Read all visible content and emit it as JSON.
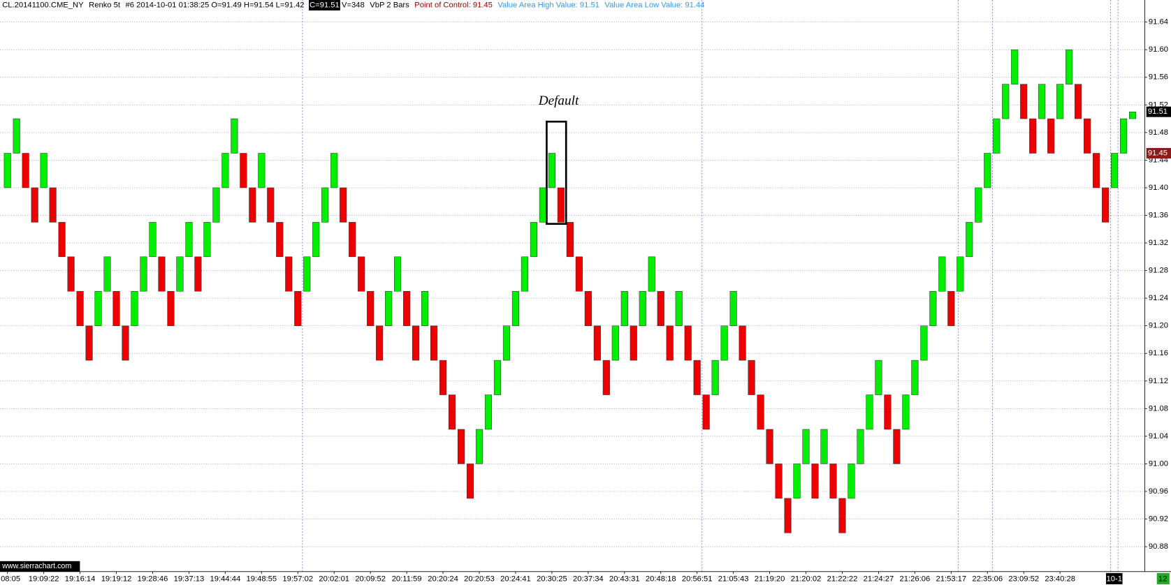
{
  "chart_data": {
    "type": "renko",
    "header": {
      "symbol": "CL.20141100.CME_NY",
      "bar_type": "Renko 5t",
      "info": "#6 2014-10-01 01:38:25 O=91.49 H=91.54 L=91.42",
      "close": "C=91.51",
      "volume": "V=348",
      "study": "VbP 2 Bars",
      "poc": "Point of Control: 91.45",
      "vah": "Value Area High Value: 91.51",
      "val": "Value Area Low Value: 91.44"
    },
    "annotation": "Default",
    "watermark": "www.sierrachart.com",
    "date_marker": "10-1",
    "corner_label": "12",
    "last_price": 91.51,
    "poc_price": 91.45,
    "up_color": "#00ee00",
    "down_color": "#ee0000",
    "grid": true,
    "ylim": [
      90.845,
      91.672
    ],
    "yticks": [
      90.88,
      90.92,
      90.96,
      {
        "value": 91,
        "label": "91.00"
      },
      91.04,
      91.08,
      91.12,
      91.16,
      {
        "value": 91.2,
        "label": "91.20"
      },
      91.24,
      91.28,
      91.32,
      91.36,
      {
        "value": 91.4,
        "label": "91.40"
      },
      91.44,
      91.48,
      91.52,
      91.56,
      {
        "value": 91.6,
        "label": "91.60"
      },
      91.64
    ],
    "categories": [
      "08:05",
      null,
      null,
      null,
      "19:09:22",
      null,
      null,
      null,
      "19:16:14",
      null,
      null,
      null,
      "19:19:12",
      null,
      null,
      null,
      "19:28:46",
      null,
      null,
      null,
      "19:37:13",
      null,
      null,
      null,
      "19:44:44",
      null,
      null,
      null,
      "19:48:55",
      null,
      null,
      null,
      "19:57:02",
      null,
      null,
      null,
      "20:02:01",
      null,
      null,
      null,
      "20:09:52",
      null,
      null,
      null,
      "20:11:59",
      null,
      null,
      null,
      "20:20:24",
      null,
      null,
      null,
      "20:20:53",
      null,
      null,
      null,
      "20:24:41",
      null,
      null,
      null,
      "20:30:25",
      null,
      null,
      null,
      "20:37:34",
      null,
      null,
      null,
      "20:43:31",
      null,
      null,
      null,
      "20:48:18",
      null,
      null,
      null,
      "20:56:51",
      null,
      null,
      null,
      "21:05:43",
      null,
      null,
      null,
      "21:19:20",
      null,
      null,
      null,
      "21:20:02",
      null,
      null,
      null,
      "21:22:22",
      null,
      null,
      null,
      "21:24:27",
      null,
      null,
      null,
      "21:26:06",
      null,
      null,
      null,
      "21:53:17",
      null,
      null,
      null,
      "22:35:06",
      null,
      null,
      null,
      "23:09:52",
      null,
      null,
      null,
      "23:40:28",
      null,
      null,
      null,
      null,
      null,
      null,
      null,
      null
    ],
    "open": [
      91.4,
      91.45,
      91.45,
      91.4,
      91.4,
      91.4,
      91.35,
      91.3,
      91.25,
      91.2,
      91.2,
      91.25,
      91.25,
      91.2,
      91.2,
      91.25,
      91.3,
      91.3,
      91.25,
      91.25,
      91.3,
      91.3,
      91.3,
      91.35,
      91.4,
      91.45,
      91.45,
      91.4,
      91.4,
      91.4,
      91.35,
      91.3,
      91.25,
      91.25,
      91.3,
      91.35,
      91.4,
      91.4,
      91.35,
      91.3,
      91.25,
      91.2,
      91.2,
      91.25,
      91.25,
      91.2,
      91.2,
      91.2,
      91.15,
      91.1,
      91.05,
      91.0,
      91.0,
      91.05,
      91.1,
      91.15,
      91.2,
      91.25,
      91.3,
      91.35,
      91.4,
      91.4,
      91.35,
      91.3,
      91.25,
      91.2,
      91.15,
      91.15,
      91.2,
      91.2,
      91.2,
      91.25,
      91.25,
      91.2,
      91.2,
      91.2,
      91.15,
      91.1,
      91.1,
      91.15,
      91.2,
      91.2,
      91.15,
      91.1,
      91.05,
      91.0,
      90.95,
      90.95,
      91.0,
      91.0,
      91.0,
      91.0,
      90.95,
      90.95,
      91.0,
      91.05,
      91.1,
      91.1,
      91.05,
      91.05,
      91.1,
      91.15,
      91.2,
      91.25,
      91.25,
      91.25,
      91.3,
      91.35,
      91.4,
      91.45,
      91.5,
      91.55,
      91.55,
      91.5,
      91.5,
      91.5,
      91.5,
      91.55,
      91.55,
      91.5,
      91.45,
      91.4,
      91.4,
      91.45,
      91.5
    ],
    "close": [
      91.45,
      91.5,
      91.4,
      91.35,
      91.45,
      91.35,
      91.3,
      91.25,
      91.2,
      91.15,
      91.25,
      91.3,
      91.2,
      91.15,
      91.25,
      91.3,
      91.35,
      91.25,
      91.2,
      91.3,
      91.35,
      91.25,
      91.35,
      91.4,
      91.45,
      91.5,
      91.4,
      91.35,
      91.45,
      91.35,
      91.3,
      91.25,
      91.2,
      91.3,
      91.35,
      91.4,
      91.45,
      91.35,
      91.3,
      91.25,
      91.2,
      91.15,
      91.25,
      91.3,
      91.2,
      91.15,
      91.25,
      91.15,
      91.1,
      91.05,
      91.0,
      90.95,
      91.05,
      91.1,
      91.15,
      91.2,
      91.25,
      91.3,
      91.35,
      91.4,
      91.45,
      91.35,
      91.3,
      91.25,
      91.2,
      91.15,
      91.1,
      91.2,
      91.25,
      91.15,
      91.25,
      91.3,
      91.2,
      91.15,
      91.25,
      91.15,
      91.1,
      91.05,
      91.15,
      91.2,
      91.25,
      91.15,
      91.1,
      91.05,
      91.0,
      90.95,
      90.9,
      91.0,
      91.05,
      90.95,
      91.05,
      90.95,
      90.9,
      91.0,
      91.05,
      91.1,
      91.15,
      91.05,
      91.0,
      91.1,
      91.15,
      91.2,
      91.25,
      91.3,
      91.2,
      91.3,
      91.35,
      91.4,
      91.45,
      91.5,
      91.55,
      91.6,
      91.5,
      91.45,
      91.55,
      91.45,
      91.55,
      91.6,
      91.5,
      91.45,
      91.4,
      91.35,
      91.45,
      91.5,
      91.51
    ]
  }
}
